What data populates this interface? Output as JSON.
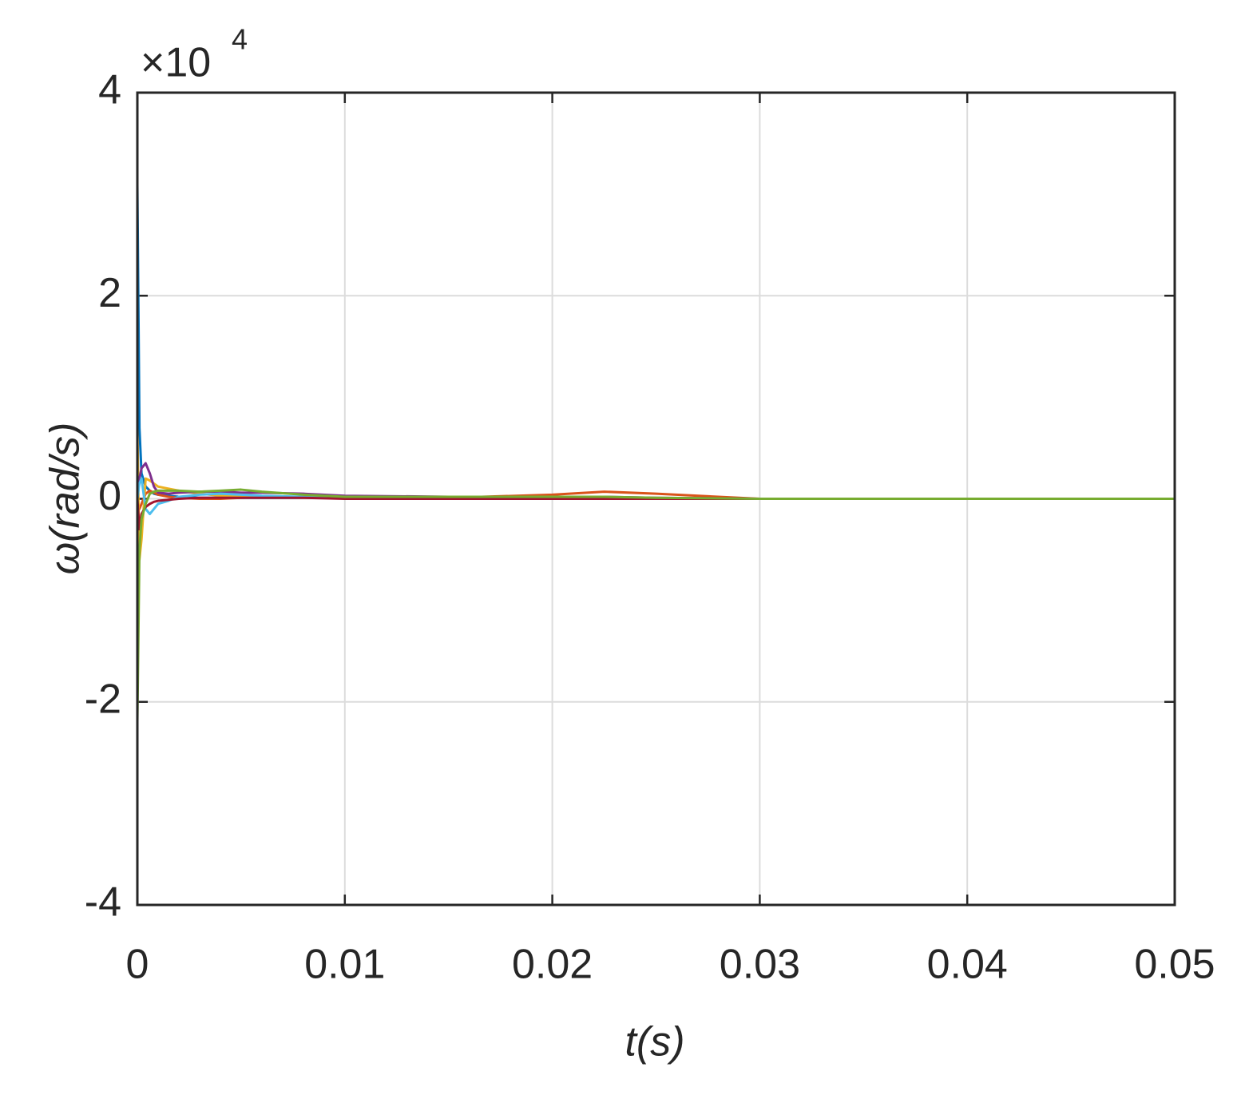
{
  "chart_data": {
    "type": "line",
    "y_label": "ω(rad/s)",
    "x_label": "t(s)",
    "y_scale_label": {
      "base": "×10",
      "exponent": "4"
    },
    "x": [
      0,
      0.0001,
      0.0002,
      0.0004,
      0.0006,
      0.0008,
      0.001,
      0.0015,
      0.002,
      0.003,
      0.004,
      0.005,
      0.006,
      0.008,
      0.01,
      0.015,
      0.02,
      0.0225,
      0.025,
      0.03,
      0.04,
      0.05
    ],
    "series": [
      {
        "color": "#0072BD",
        "values": [
          3.1,
          0.7,
          0.25,
          0.12,
          0.08,
          0.05,
          0.04,
          0.03,
          0.02,
          0.01,
          0.01,
          0.01,
          0.01,
          0.01,
          0.01,
          0.01,
          0.01,
          0.01,
          0,
          0,
          0,
          0
        ]
      },
      {
        "color": "#D95319",
        "values": [
          0,
          -0.1,
          -0.05,
          0.05,
          0.08,
          0.06,
          0.04,
          0.02,
          0.01,
          0,
          0,
          0.01,
          0.02,
          0.02,
          0.01,
          0.01,
          0.04,
          0.07,
          0.05,
          0,
          0,
          0
        ]
      },
      {
        "color": "#EDB120",
        "values": [
          0.7,
          -0.6,
          -0.4,
          0.2,
          0.18,
          0.15,
          0.12,
          0.1,
          0.08,
          0.05,
          0.03,
          0.02,
          0.02,
          0.01,
          0.01,
          0.01,
          0.01,
          0.01,
          0,
          0,
          0,
          0
        ]
      },
      {
        "color": "#7E2F8E",
        "values": [
          0,
          0.2,
          0.3,
          0.35,
          0.25,
          0.12,
          0.06,
          0.05,
          0.06,
          0.07,
          0.07,
          0.06,
          0.06,
          0.05,
          0.03,
          0.02,
          0.02,
          0.02,
          0.01,
          0,
          0,
          0
        ]
      },
      {
        "color": "#4DBEEE",
        "values": [
          0,
          0.15,
          0.2,
          -0.1,
          -0.15,
          -0.1,
          -0.05,
          -0.02,
          0.02,
          0.04,
          0.05,
          0.04,
          0.03,
          0.02,
          0.01,
          0.01,
          0.01,
          0.01,
          0,
          0,
          0,
          0
        ]
      },
      {
        "color": "#A2142F",
        "values": [
          0,
          -0.3,
          -0.15,
          -0.08,
          -0.05,
          -0.03,
          -0.02,
          -0.01,
          0,
          0.01,
          0.01,
          0.01,
          0.01,
          0.01,
          0,
          0,
          0,
          0,
          0,
          0,
          0,
          0
        ]
      },
      {
        "color": "#77AC30",
        "values": [
          -2.2,
          -0.5,
          -0.2,
          -0.05,
          0.05,
          0.07,
          0.08,
          0.08,
          0.08,
          0.07,
          0.08,
          0.09,
          0.07,
          0.04,
          0.02,
          0.02,
          0.02,
          0.02,
          0.01,
          0,
          0,
          0
        ]
      }
    ],
    "xlim": [
      0,
      0.05
    ],
    "xticks": [
      0,
      0.01,
      0.02,
      0.03,
      0.04,
      0.05
    ],
    "ylim": [
      -4,
      4
    ],
    "yticks": [
      -4,
      -2,
      0,
      2,
      4
    ],
    "grid": true
  }
}
